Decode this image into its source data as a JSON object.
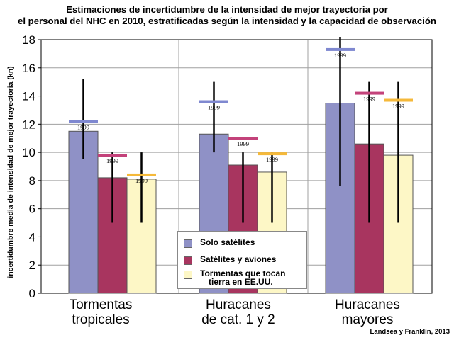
{
  "chart_data": {
    "type": "bar",
    "title_lines": [
      "Estimaciones de incertidumbre de la intensidad de mejor trayectoria por",
      "el personal del NHC en 2010, estratificadas según la intensidad y la capacidad de observación"
    ],
    "ylabel": "incertidumbre media de intensidad de mejor trayectoria (kn)",
    "ylim": [
      0,
      18
    ],
    "yticks": [
      0,
      2,
      4,
      6,
      8,
      10,
      12,
      14,
      16,
      18
    ],
    "grid": true,
    "categories": [
      [
        "Tormentas",
        "tropicales"
      ],
      [
        "Huracanes",
        "de cat. 1 y 2"
      ],
      [
        "Huracanes",
        "mayores"
      ]
    ],
    "series": [
      {
        "name": "Solo satélites",
        "color": "#8f91c6",
        "values": [
          11.5,
          11.3,
          13.5
        ],
        "error_low": [
          9.5,
          10.0,
          7.6
        ],
        "error_high": [
          15.2,
          15.0,
          18.2
        ],
        "ref_values": [
          12.2,
          13.6,
          17.3
        ]
      },
      {
        "name": "Satélites y aviones",
        "color": "#a8355f",
        "values": [
          8.2,
          9.1,
          10.6
        ],
        "error_low": [
          5.0,
          5.0,
          5.0
        ],
        "error_high": [
          10.0,
          10.0,
          15.0
        ],
        "ref_values": [
          9.8,
          11.0,
          14.2
        ]
      },
      {
        "name_lines": [
          "Tormentas que tocan",
          "tierra en EE.UU."
        ],
        "color": "#fdf7c6",
        "values": [
          8.1,
          8.6,
          9.8
        ],
        "error_low": [
          5.0,
          5.0,
          5.0
        ],
        "error_high": [
          10.0,
          10.0,
          15.0
        ],
        "ref_values": [
          8.4,
          9.9,
          13.7
        ]
      }
    ],
    "ref_label": "1999",
    "ref_colors": [
      "#7f88d0",
      "#c3427a",
      "#f5b93a"
    ],
    "credit": "Landsea y Franklin, 2013"
  }
}
